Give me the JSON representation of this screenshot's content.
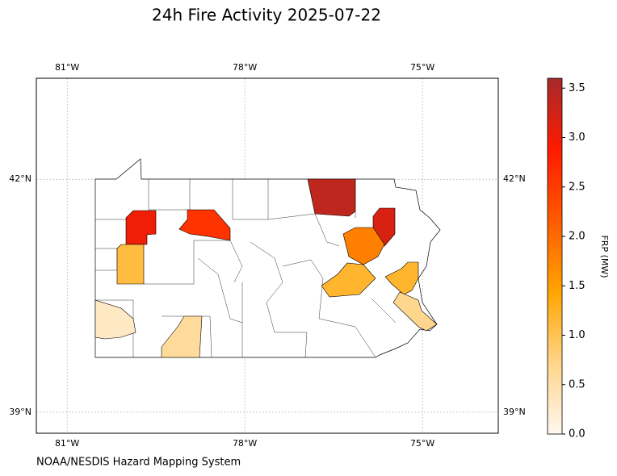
{
  "map": {
    "title": "24h Fire Activity 2025-07-22",
    "credit": "NOAA/NESDIS Hazard Mapping System",
    "xlim": [
      -81.52,
      -73.72
    ],
    "ylim": [
      38.73,
      43.3
    ],
    "xticks": [
      {
        "value": -81,
        "label": "81°W"
      },
      {
        "value": -78,
        "label": "78°W"
      },
      {
        "value": -75,
        "label": "75°W"
      }
    ],
    "yticks": [
      {
        "value": 42,
        "label": "42°N"
      },
      {
        "value": 39,
        "label": "39°N"
      }
    ],
    "grid": true,
    "county_frp": [
      3.0,
      2.6,
      1.1,
      0.3,
      0.6,
      3.4,
      3.2,
      1.8,
      1.2,
      1.2,
      0.7
    ],
    "colorbar": {
      "label": "FRP (MW)",
      "lim": [
        0,
        3.6
      ],
      "ticks": [
        {
          "value": 0,
          "label": "0.0"
        },
        {
          "value": 0.5,
          "label": "0.5"
        },
        {
          "value": 1,
          "label": "1.0"
        },
        {
          "value": 1.5,
          "label": "1.5"
        },
        {
          "value": 2,
          "label": "2.0"
        },
        {
          "value": 2.5,
          "label": "2.5"
        },
        {
          "value": 3,
          "label": "3.0"
        },
        {
          "value": 3.5,
          "label": "3.5"
        }
      ],
      "colormap": [
        "#fff8ee",
        "#ffd58a",
        "#ffa500",
        "#ff5a00",
        "#ff1a00",
        "#a52a2a"
      ]
    }
  }
}
